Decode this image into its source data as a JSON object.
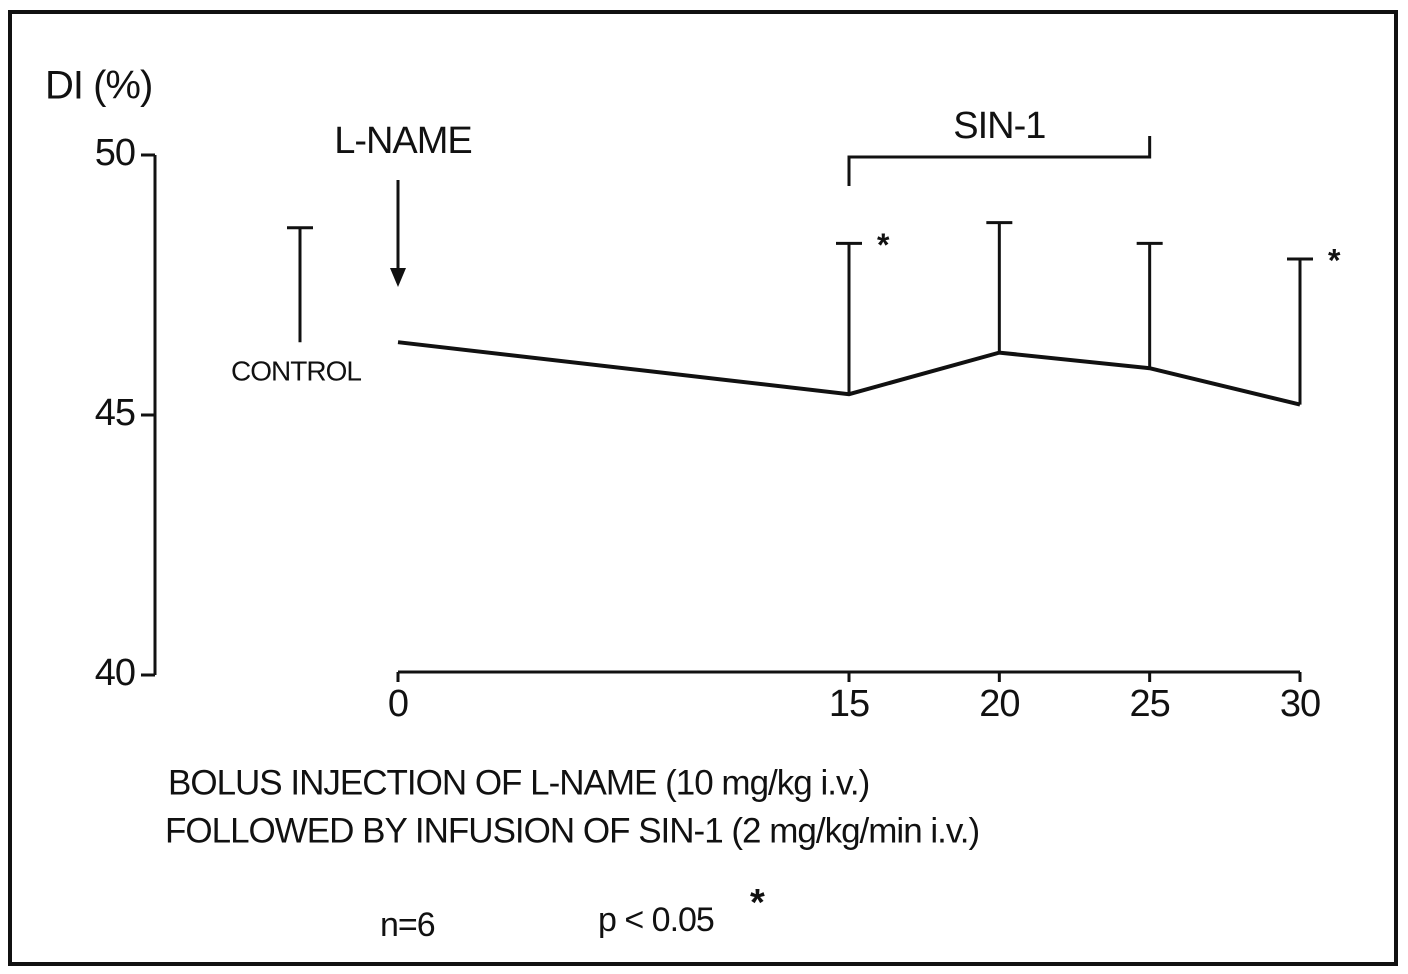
{
  "chart_data": {
    "type": "line",
    "y_label": "DI (%)",
    "x": [
      0,
      15,
      20,
      25,
      30
    ],
    "xlim": [
      0,
      30
    ],
    "xticks": [
      0,
      15,
      20,
      25,
      30
    ],
    "ylim": [
      40,
      50
    ],
    "yticks": [
      40,
      45,
      50
    ],
    "series": [
      {
        "color": "#111111",
        "values": [
          46.4,
          45.4,
          46.2,
          45.9,
          45.2
        ],
        "errors": [
          null,
          2.9,
          2.5,
          2.4,
          2.8
        ]
      }
    ],
    "control": {
      "label": "CONTROL",
      "value": 46.4,
      "error": 2.2
    },
    "annotations": [
      {
        "text": "L-NAME",
        "x": 0
      },
      {
        "text": "SIN-1",
        "x_start": 15,
        "x_end": 25
      }
    ],
    "significance_marker": "*",
    "significant_x": [
      15,
      30
    ],
    "caption": [
      "BOLUS  INJECTION  OF  L-NAME  (10 mg/kg i.v.)",
      "FOLLOWED  BY  INFUSION  OF  SIN-1  (2 mg/kg/min i.v.)"
    ],
    "n_label": "n=6",
    "p_label": "p <  0.05"
  }
}
